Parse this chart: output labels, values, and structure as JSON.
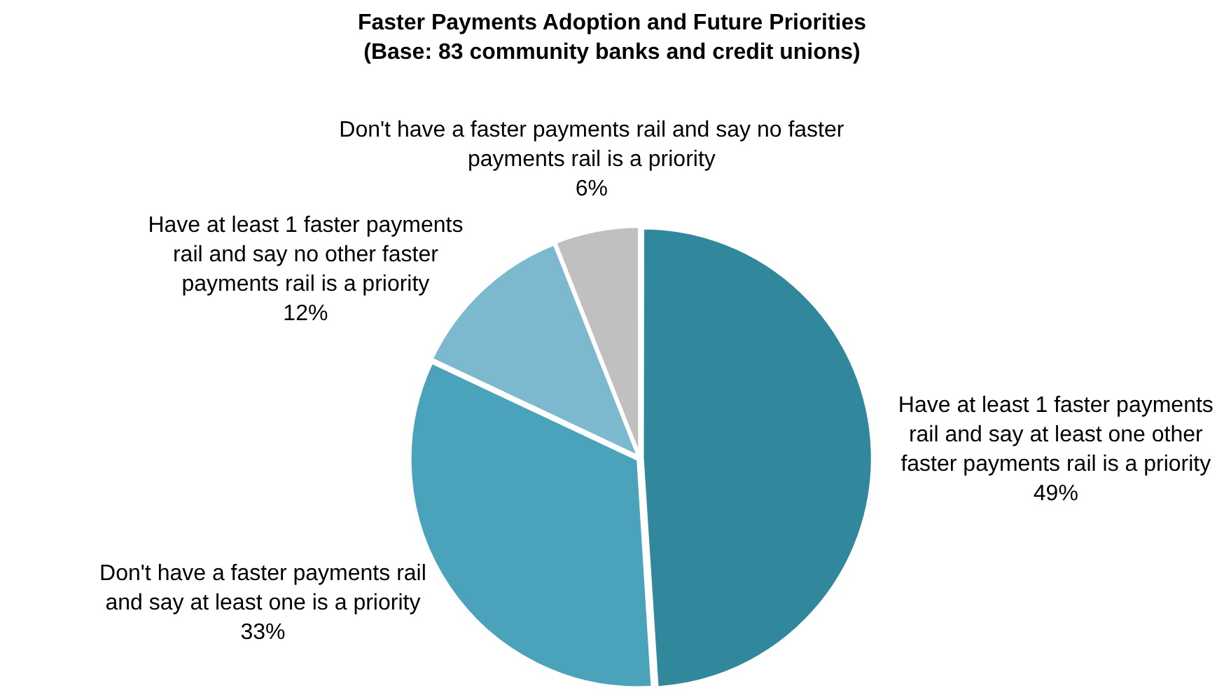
{
  "chart_data": {
    "type": "pie",
    "title": "Faster Payments Adoption and Future Priorities",
    "subtitle": "(Base: 83 community banks and credit unions)",
    "categories": [
      "Have at least 1 faster payments rail and say at least one other faster payments rail is a priority",
      "Don't have a faster payments rail and say at least one is a priority",
      "Have at least 1 faster payments rail and say no other faster payments rail is a priority",
      "Don't have a faster payments rail and say no faster payments rail is a priority"
    ],
    "values": [
      49,
      33,
      12,
      6
    ],
    "value_labels": [
      "49%",
      "33%",
      "12%",
      "6%"
    ],
    "colors": [
      "#31879c",
      "#4aa3bb",
      "#7cb9cf",
      "#c0c0c0"
    ],
    "legend": false
  }
}
